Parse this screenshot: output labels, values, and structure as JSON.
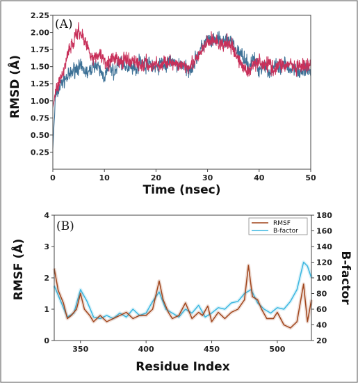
{
  "colors": {
    "rmsd_series_1": "#3d7196",
    "rmsd_series_2": "#c8305a",
    "rmsf": "#a0441a",
    "bfactor": "#38b6e0",
    "frame": "#444444"
  },
  "chart_data": [
    {
      "type": "line",
      "panel_label": "(A)",
      "xlabel": "Time (nsec)",
      "ylabel": "RMSD (Å)",
      "xlim": [
        0,
        50
      ],
      "ylim": [
        0,
        2.25
      ],
      "xticks": [
        "0",
        "10",
        "20",
        "30",
        "40",
        "50"
      ],
      "yticks": [
        "0.25",
        "0.50",
        "0.75",
        "1.00",
        "1.25",
        "1.50",
        "1.75",
        "2.00",
        "2.25"
      ],
      "grid": false,
      "series": [
        {
          "values": [
            [
              0,
              0.3
            ],
            [
              0.5,
              1.05
            ],
            [
              1,
              1.15
            ],
            [
              2,
              1.3
            ],
            [
              3,
              1.35
            ],
            [
              4,
              1.45
            ],
            [
              5,
              1.5
            ],
            [
              6,
              1.45
            ],
            [
              7,
              1.4
            ],
            [
              8,
              1.55
            ],
            [
              9,
              1.45
            ],
            [
              10,
              1.35
            ],
            [
              11,
              1.5
            ],
            [
              12,
              1.4
            ],
            [
              13,
              1.6
            ],
            [
              14,
              1.45
            ],
            [
              15,
              1.55
            ],
            [
              16,
              1.45
            ],
            [
              17,
              1.6
            ],
            [
              18,
              1.5
            ],
            [
              19,
              1.55
            ],
            [
              20,
              1.45
            ],
            [
              21,
              1.55
            ],
            [
              22,
              1.5
            ],
            [
              23,
              1.6
            ],
            [
              24,
              1.5
            ],
            [
              25,
              1.55
            ],
            [
              26,
              1.45
            ],
            [
              27,
              1.5
            ],
            [
              28,
              1.65
            ],
            [
              29,
              1.8
            ],
            [
              30,
              1.9
            ],
            [
              31,
              1.85
            ],
            [
              32,
              1.9
            ],
            [
              33,
              1.85
            ],
            [
              34,
              1.9
            ],
            [
              35,
              1.8
            ],
            [
              36,
              1.7
            ],
            [
              37,
              1.65
            ],
            [
              38,
              1.5
            ],
            [
              39,
              1.6
            ],
            [
              40,
              1.45
            ],
            [
              41,
              1.55
            ],
            [
              42,
              1.4
            ],
            [
              43,
              1.5
            ],
            [
              44,
              1.45
            ],
            [
              45,
              1.55
            ],
            [
              46,
              1.45
            ],
            [
              47,
              1.5
            ],
            [
              48,
              1.4
            ],
            [
              49,
              1.45
            ],
            [
              50,
              1.45
            ]
          ]
        },
        {
          "values": [
            [
              0,
              0.9
            ],
            [
              0.5,
              1.1
            ],
            [
              1,
              1.25
            ],
            [
              2,
              1.4
            ],
            [
              3,
              1.75
            ],
            [
              4,
              1.85
            ],
            [
              5,
              2.05
            ],
            [
              6,
              1.9
            ],
            [
              7,
              1.75
            ],
            [
              8,
              1.6
            ],
            [
              9,
              1.7
            ],
            [
              10,
              1.6
            ],
            [
              11,
              1.55
            ],
            [
              12,
              1.65
            ],
            [
              13,
              1.55
            ],
            [
              14,
              1.6
            ],
            [
              15,
              1.55
            ],
            [
              16,
              1.6
            ],
            [
              17,
              1.5
            ],
            [
              18,
              1.55
            ],
            [
              19,
              1.5
            ],
            [
              20,
              1.55
            ],
            [
              21,
              1.5
            ],
            [
              22,
              1.6
            ],
            [
              23,
              1.55
            ],
            [
              24,
              1.5
            ],
            [
              25,
              1.55
            ],
            [
              26,
              1.5
            ],
            [
              27,
              1.55
            ],
            [
              28,
              1.6
            ],
            [
              29,
              1.75
            ],
            [
              30,
              1.85
            ],
            [
              31,
              1.9
            ],
            [
              32,
              1.85
            ],
            [
              33,
              1.8
            ],
            [
              34,
              1.85
            ],
            [
              35,
              1.75
            ],
            [
              36,
              1.6
            ],
            [
              37,
              1.5
            ],
            [
              38,
              1.4
            ],
            [
              39,
              1.55
            ],
            [
              40,
              1.6
            ],
            [
              41,
              1.5
            ],
            [
              42,
              1.55
            ],
            [
              43,
              1.45
            ],
            [
              44,
              1.55
            ],
            [
              45,
              1.5
            ],
            [
              46,
              1.55
            ],
            [
              47,
              1.45
            ],
            [
              48,
              1.5
            ],
            [
              49,
              1.5
            ],
            [
              50,
              1.5
            ]
          ]
        }
      ]
    },
    {
      "type": "line",
      "panel_label": "(B)",
      "xlabel": "Residue Index",
      "ylabel": "RMSF (Å)",
      "y2label": "B-factor",
      "xlim": [
        330,
        526
      ],
      "ylim": [
        0,
        4
      ],
      "y2lim": [
        20,
        180
      ],
      "xticks": [
        350,
        400,
        450,
        500
      ],
      "yticks": [
        0,
        1,
        2,
        3,
        4
      ],
      "y2ticks": [
        20,
        40,
        60,
        80,
        100,
        120,
        140,
        160,
        180
      ],
      "legend_position": "top-right",
      "series": [
        {
          "name": "RMSF",
          "axis": "left",
          "x": [
            330,
            333,
            337,
            340,
            343,
            347,
            350,
            353,
            357,
            360,
            365,
            370,
            375,
            380,
            385,
            390,
            395,
            400,
            405,
            410,
            413,
            417,
            420,
            425,
            430,
            435,
            440,
            443,
            447,
            450,
            455,
            460,
            465,
            470,
            475,
            478,
            481,
            485,
            488,
            492,
            497,
            500,
            505,
            510,
            515,
            520,
            523,
            526
          ],
          "values": [
            2.3,
            1.6,
            1.2,
            0.7,
            0.8,
            1.0,
            1.5,
            1.0,
            0.8,
            0.6,
            0.8,
            0.6,
            0.7,
            0.8,
            0.9,
            0.7,
            0.8,
            0.8,
            1.0,
            1.9,
            1.3,
            0.9,
            0.7,
            0.8,
            1.2,
            0.7,
            0.9,
            0.8,
            1.1,
            0.6,
            0.9,
            0.7,
            0.9,
            1.0,
            1.3,
            2.4,
            1.4,
            1.3,
            1.0,
            0.7,
            0.7,
            0.9,
            0.5,
            0.4,
            0.6,
            1.8,
            0.6,
            1.3
          ]
        },
        {
          "name": "B-factor",
          "axis": "right",
          "x": [
            330,
            335,
            340,
            345,
            350,
            355,
            360,
            365,
            370,
            375,
            380,
            385,
            390,
            395,
            400,
            405,
            410,
            415,
            420,
            425,
            430,
            435,
            440,
            445,
            450,
            455,
            460,
            465,
            470,
            475,
            480,
            485,
            490,
            495,
            500,
            505,
            510,
            515,
            520,
            523,
            526
          ],
          "values": [
            90,
            70,
            50,
            55,
            85,
            70,
            50,
            48,
            52,
            48,
            55,
            50,
            60,
            52,
            55,
            70,
            82,
            60,
            55,
            50,
            60,
            55,
            65,
            50,
            55,
            62,
            60,
            68,
            70,
            80,
            85,
            68,
            60,
            55,
            62,
            60,
            70,
            85,
            120,
            115,
            100
          ]
        }
      ]
    }
  ]
}
